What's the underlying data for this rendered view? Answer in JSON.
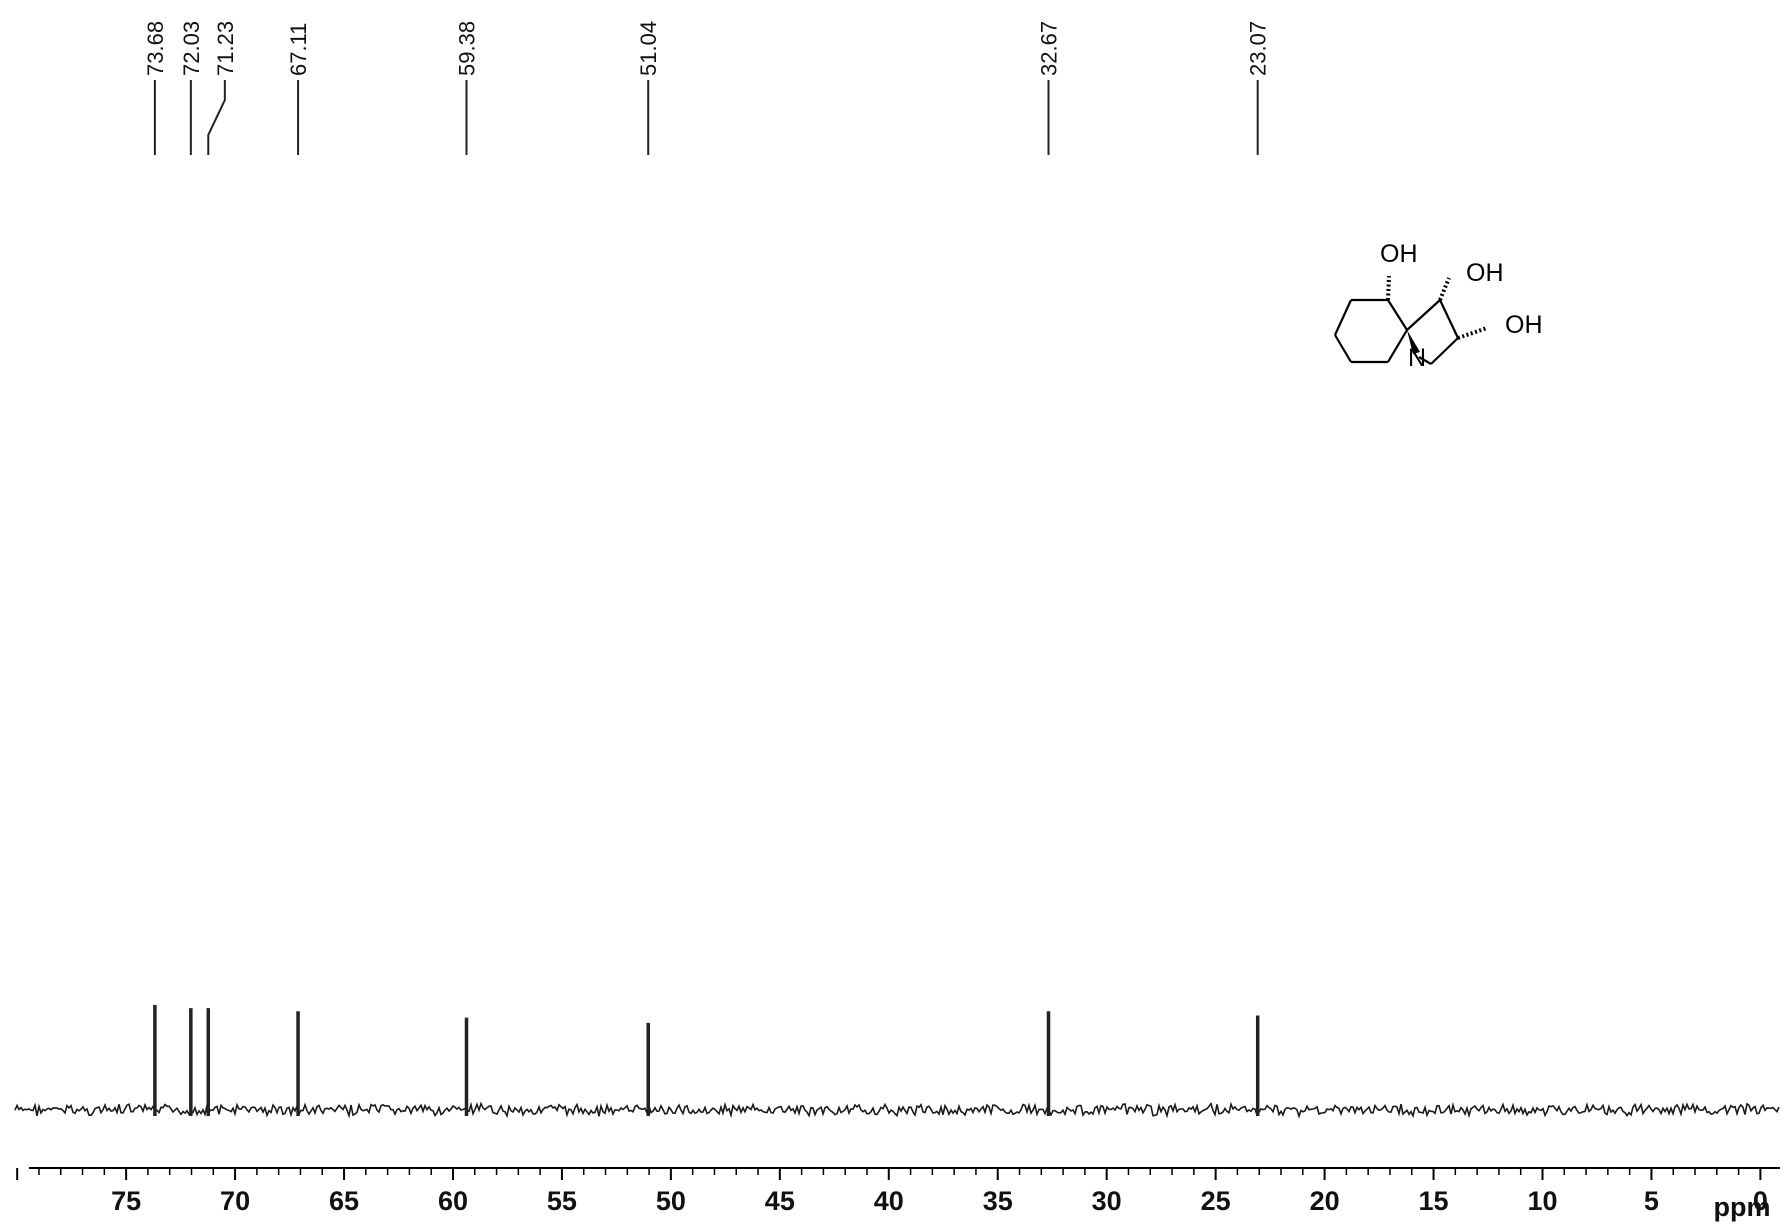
{
  "chart_data": {
    "type": "line",
    "title": "",
    "xlabel": "ppm",
    "ylabel": "",
    "xlim": [
      80.1,
      -0.9
    ],
    "x_reversed": true,
    "grid": false,
    "legend": null,
    "colors": {
      "spectrum": "#1a1a1a",
      "peak": "#222222",
      "axis": "#000000"
    },
    "peaks": [
      {
        "ppm": 73.68,
        "label": "73.68",
        "height": 1.0
      },
      {
        "ppm": 72.03,
        "label": "72.03",
        "height": 0.97
      },
      {
        "ppm": 71.23,
        "label": "71.23",
        "height": 0.97
      },
      {
        "ppm": 67.11,
        "label": "67.11",
        "height": 0.94
      },
      {
        "ppm": 59.38,
        "label": "59.38",
        "height": 0.88
      },
      {
        "ppm": 51.04,
        "label": "51.04",
        "height": 0.83
      },
      {
        "ppm": 32.67,
        "label": "32.67",
        "height": 0.94
      },
      {
        "ppm": 23.07,
        "label": "23.07",
        "height": 0.9
      }
    ],
    "x_ticks": [
      {
        "value": 75,
        "label": "75"
      },
      {
        "value": 70,
        "label": "70"
      },
      {
        "value": 65,
        "label": "65"
      },
      {
        "value": 60,
        "label": "60"
      },
      {
        "value": 55,
        "label": "55"
      },
      {
        "value": 50,
        "label": "50"
      },
      {
        "value": 45,
        "label": "45"
      },
      {
        "value": 40,
        "label": "40"
      },
      {
        "value": 35,
        "label": "35"
      },
      {
        "value": 30,
        "label": "30"
      },
      {
        "value": 25,
        "label": "25"
      },
      {
        "value": 20,
        "label": "20"
      },
      {
        "value": 15,
        "label": "15"
      },
      {
        "value": 10,
        "label": "10"
      },
      {
        "value": 5,
        "label": "5"
      },
      {
        "value": 0,
        "label": "0"
      }
    ],
    "minor_tick_step": 1
  },
  "structure": {
    "oh_top_left": "OH",
    "oh_top_right": "OH",
    "oh_right": "OH",
    "n_atom": "N"
  }
}
